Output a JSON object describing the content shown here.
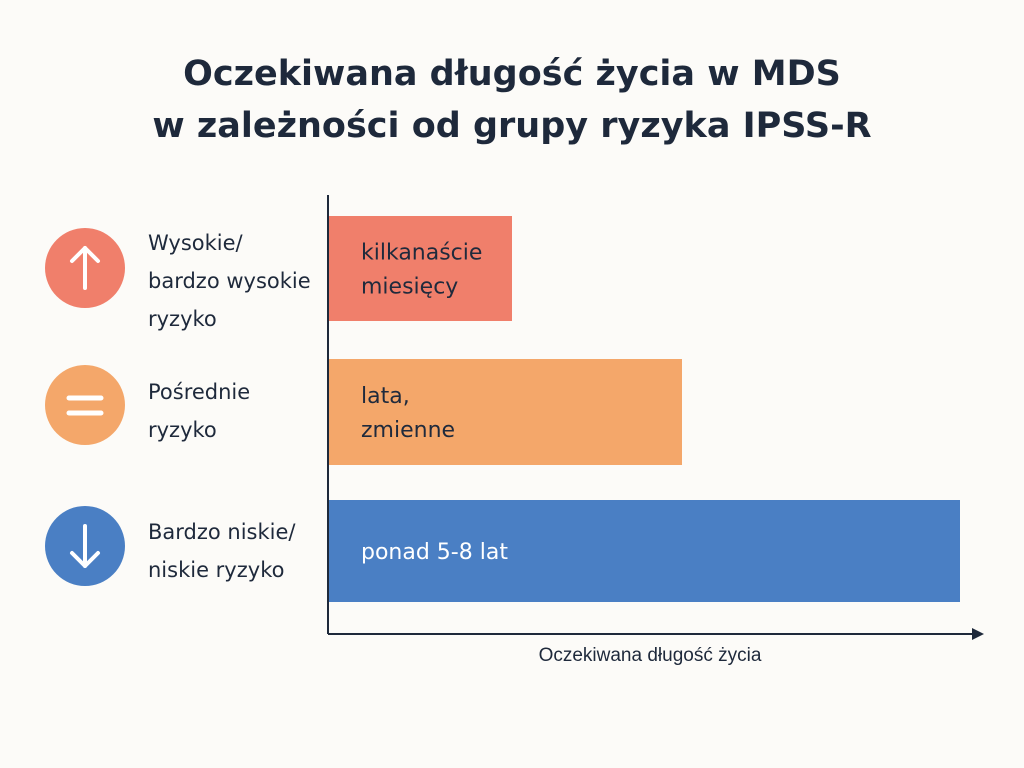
{
  "chart_data": {
    "type": "bar",
    "orientation": "horizontal",
    "title": [
      "Oczekiwana długość życia w MDS",
      "w zależności od grupy ryzyka IPSS-R"
    ],
    "xlabel": "Oczekiwana długość życia",
    "ylabel": "",
    "grid": false,
    "categories": [
      {
        "label_lines": [
          "Wysokie/",
          "bardzo wysokie",
          "ryzyko"
        ],
        "icon": "arrow-up-icon",
        "icon_glyph": "↑",
        "value": 0.29,
        "color": "#f07f6b",
        "text_color": "#1f2a3c",
        "bar_label_lines": [
          "kilkanaście",
          "miesięcy"
        ]
      },
      {
        "label_lines": [
          "Pośrednie",
          "ryzyko"
        ],
        "icon": "equals-icon",
        "icon_glyph": "=",
        "value": 0.56,
        "color": "#f4a76a",
        "text_color": "#1f2a3c",
        "bar_label_lines": [
          "lata,",
          "zmienne"
        ]
      },
      {
        "label_lines": [
          "Bardzo niskie/",
          "niskie ryzyko"
        ],
        "icon": "arrow-down-icon",
        "icon_glyph": "↓",
        "value": 1.0,
        "color": "#4a7fc4",
        "text_color": "#ffffff",
        "bar_label_lines": [
          "ponad 5-8 lat"
        ]
      }
    ]
  }
}
